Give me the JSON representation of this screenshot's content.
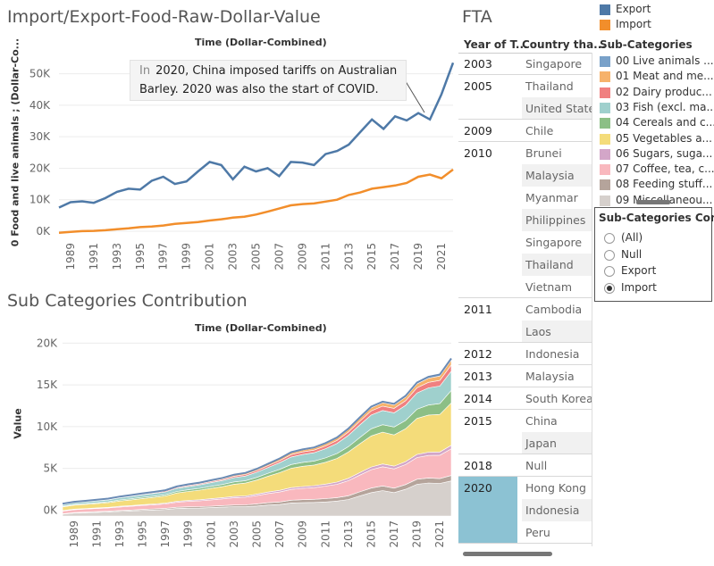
{
  "top": {
    "title": "Import/Export-Food-Raw-Dollar-Value",
    "subtitle": "Time (Dollar-Combined)",
    "y_axis_label": "0 Food and live animals ; (Dollar-Co...",
    "annotation_prefix": "In",
    "annotation_line1": "2020, China imposed tariffs on Australian",
    "annotation_line2": "Barley. 2020 was also the start of COVID."
  },
  "bottom": {
    "title": "Sub Categories Contribution",
    "subtitle": "Time (Dollar-Combined)",
    "y_axis_label": "Value"
  },
  "fta": {
    "title": "FTA",
    "col_year": "Year of T...",
    "col_country": "Country tha...",
    "rows": [
      {
        "year": "2003",
        "country": "Singapore"
      },
      {
        "year": "2005",
        "country": "Thailand"
      },
      {
        "year": "",
        "country": "United States"
      },
      {
        "year": "2009",
        "country": "Chile"
      },
      {
        "year": "2010",
        "country": "Brunei"
      },
      {
        "year": "",
        "country": "Malaysia"
      },
      {
        "year": "",
        "country": "Myanmar"
      },
      {
        "year": "",
        "country": "Philippines"
      },
      {
        "year": "",
        "country": "Singapore"
      },
      {
        "year": "",
        "country": "Thailand"
      },
      {
        "year": "",
        "country": "Vietnam"
      },
      {
        "year": "2011",
        "country": "Cambodia"
      },
      {
        "year": "",
        "country": "Laos"
      },
      {
        "year": "2012",
        "country": "Indonesia"
      },
      {
        "year": "2013",
        "country": "Malaysia"
      },
      {
        "year": "2014",
        "country": "South Korea"
      },
      {
        "year": "2015",
        "country": "China"
      },
      {
        "year": "",
        "country": "Japan"
      },
      {
        "year": "2018",
        "country": "Null"
      },
      {
        "year": "2020",
        "country": "Hong Kong"
      },
      {
        "year": "",
        "country": "Indonesia"
      },
      {
        "year": "",
        "country": "Peru"
      }
    ],
    "highlight_color": "#8cc2d3"
  },
  "legend_type": {
    "items": [
      {
        "label": "Export",
        "color": "#4e79a7"
      },
      {
        "label": "Import",
        "color": "#f28e2b"
      }
    ]
  },
  "legend_sub": {
    "title": "Sub-Categories",
    "items": [
      {
        "label": "00 Live animals ...",
        "color": "#79a1c9"
      },
      {
        "label": "01 Meat and me...",
        "color": "#f6b26b"
      },
      {
        "label": "02 Dairy produc...",
        "color": "#f08080"
      },
      {
        "label": "03 Fish (excl. ma...",
        "color": "#9fd0cd"
      },
      {
        "label": "04 Cereals and c...",
        "color": "#8cbf86"
      },
      {
        "label": "05 Vegetables a...",
        "color": "#f4dc7a"
      },
      {
        "label": "06 Sugars, suga...",
        "color": "#d3a6c8"
      },
      {
        "label": "07 Coffee, tea, c...",
        "color": "#f9b8be"
      },
      {
        "label": "08 Feeding stuff...",
        "color": "#b5a49b"
      },
      {
        "label": "09 Miscellaneou...",
        "color": "#d6d0cc"
      }
    ]
  },
  "filter": {
    "title": "Sub-Categories Con...",
    "options": [
      "(All)",
      "Null",
      "Export",
      "Import"
    ],
    "selected": "Import"
  },
  "chart_data": [
    {
      "type": "line",
      "title": "Import/Export-Food-Raw-Dollar-Value",
      "ylabel": "0 Food and live animals ; (Dollar-Co...",
      "x_ticks": [
        "1989",
        "1991",
        "1993",
        "1995",
        "1997",
        "1999",
        "2001",
        "2003",
        "2005",
        "2007",
        "2009",
        "2011",
        "2013",
        "2015",
        "2017",
        "2019",
        "2021"
      ],
      "y_ticks": [
        "0K",
        "10K",
        "20K",
        "30K",
        "40K",
        "50K"
      ],
      "ylim": [
        -2000,
        57000
      ],
      "x": [
        1988,
        1989,
        1990,
        1991,
        1992,
        1993,
        1994,
        1995,
        1996,
        1997,
        1998,
        1999,
        2000,
        2001,
        2002,
        2003,
        2004,
        2005,
        2006,
        2007,
        2008,
        2009,
        2010,
        2011,
        2012,
        2013,
        2014,
        2015,
        2016,
        2017,
        2018,
        2019,
        2020,
        2021,
        2022
      ],
      "series": [
        {
          "name": "Export",
          "values": [
            7500,
            9200,
            9500,
            9000,
            10500,
            12500,
            13500,
            13200,
            16000,
            17300,
            15000,
            15800,
            19000,
            22000,
            21000,
            16500,
            20500,
            19000,
            20000,
            17500,
            22000,
            21800,
            21000,
            24500,
            25500,
            27500,
            31500,
            35500,
            32500,
            36500,
            35200,
            37500,
            35500,
            43500,
            53500
          ]
        },
        {
          "name": "Import",
          "values": [
            -500,
            -200,
            0,
            100,
            300,
            600,
            900,
            1300,
            1500,
            1800,
            2300,
            2600,
            2900,
            3400,
            3800,
            4300,
            4600,
            5300,
            6200,
            7200,
            8200,
            8600,
            8800,
            9400,
            10000,
            11500,
            12300,
            13500,
            14000,
            14500,
            15300,
            17300,
            18000,
            16800,
            19600
          ]
        }
      ]
    },
    {
      "type": "area",
      "title": "Sub Categories Contribution",
      "ylabel": "Value",
      "x_ticks": [
        "1989",
        "1991",
        "1993",
        "1995",
        "1997",
        "1999",
        "2001",
        "2003",
        "2005",
        "2007",
        "2009",
        "2011",
        "2013",
        "2015",
        "2017",
        "2019",
        "2021"
      ],
      "y_ticks": [
        "0K",
        "5K",
        "10K",
        "15K",
        "20K"
      ],
      "ylim": [
        -700,
        21000
      ],
      "x": [
        1988,
        1989,
        1990,
        1991,
        1992,
        1993,
        1994,
        1995,
        1996,
        1997,
        1998,
        1999,
        2000,
        2001,
        2002,
        2003,
        2004,
        2005,
        2006,
        2007,
        2008,
        2009,
        2010,
        2011,
        2012,
        2013,
        2014,
        2015,
        2016,
        2017,
        2018,
        2019,
        2020,
        2021,
        2022
      ],
      "stack_order": "bottom-to-top: 09, 08, 07, 06, 05, 04, 03, 02, 01, 00",
      "series": [
        {
          "name": "09 Miscellaneou...",
          "values": [
            -480,
            -350,
            -300,
            -260,
            -210,
            -140,
            -90,
            -30,
            20,
            80,
            200,
            240,
            250,
            300,
            360,
            420,
            420,
            500,
            620,
            680,
            860,
            900,
            920,
            980,
            1080,
            1280,
            1700,
            2100,
            2350,
            2100,
            2500,
            3100,
            3250,
            3200,
            3500
          ]
        },
        {
          "name": "08 Feeding stuff...",
          "values": [
            50,
            60,
            70,
            80,
            90,
            100,
            110,
            120,
            130,
            140,
            150,
            160,
            170,
            180,
            190,
            200,
            220,
            250,
            270,
            300,
            330,
            360,
            380,
            400,
            420,
            450,
            500,
            550,
            550,
            540,
            560,
            600,
            600,
            580,
            650
          ]
        },
        {
          "name": "07 Coffee, tea, c...",
          "values": [
            320,
            350,
            360,
            380,
            390,
            420,
            450,
            480,
            500,
            520,
            600,
            650,
            700,
            750,
            800,
            860,
            900,
            1000,
            1100,
            1200,
            1300,
            1350,
            1400,
            1500,
            1600,
            1800,
            2000,
            2200,
            2300,
            2300,
            2400,
            2600,
            2700,
            2800,
            3200
          ]
        },
        {
          "name": "06 Sugars, suga...",
          "values": [
            60,
            60,
            60,
            70,
            70,
            80,
            80,
            90,
            90,
            100,
            110,
            120,
            130,
            140,
            150,
            160,
            170,
            180,
            190,
            200,
            210,
            220,
            230,
            240,
            260,
            280,
            300,
            320,
            330,
            340,
            350,
            380,
            390,
            380,
            420
          ]
        },
        {
          "name": "05 Vegetables a...",
          "values": [
            440,
            480,
            500,
            520,
            560,
            640,
            680,
            740,
            790,
            850,
            1000,
            1070,
            1150,
            1250,
            1320,
            1470,
            1530,
            1680,
            1900,
            2110,
            2320,
            2420,
            2470,
            2620,
            2840,
            3150,
            3450,
            3720,
            3810,
            3730,
            3930,
            4300,
            4450,
            4500,
            5070
          ]
        },
        {
          "name": "04 Cereals and c...",
          "values": [
            60,
            70,
            80,
            90,
            100,
            120,
            130,
            140,
            150,
            160,
            180,
            200,
            210,
            230,
            250,
            270,
            290,
            320,
            350,
            400,
            450,
            470,
            480,
            520,
            580,
            650,
            750,
            850,
            900,
            950,
            1000,
            1100,
            1200,
            1300,
            1500
          ]
        },
        {
          "name": "03 Fish (excl. ma...",
          "values": [
            200,
            210,
            220,
            230,
            240,
            260,
            280,
            300,
            320,
            340,
            380,
            400,
            420,
            450,
            480,
            520,
            560,
            620,
            700,
            800,
            900,
            950,
            1000,
            1100,
            1200,
            1350,
            1500,
            1650,
            1700,
            1700,
            1800,
            1950,
            2050,
            2100,
            2300
          ]
        },
        {
          "name": "02 Dairy produc...",
          "values": [
            50,
            50,
            60,
            60,
            60,
            70,
            80,
            80,
            90,
            100,
            110,
            120,
            130,
            140,
            150,
            170,
            180,
            200,
            220,
            250,
            280,
            300,
            310,
            330,
            360,
            400,
            450,
            500,
            520,
            530,
            560,
            620,
            660,
            680,
            750
          ]
        },
        {
          "name": "01 Meat and me...",
          "values": [
            50,
            50,
            50,
            60,
            60,
            60,
            70,
            70,
            80,
            80,
            90,
            100,
            110,
            120,
            130,
            140,
            150,
            160,
            180,
            200,
            220,
            230,
            240,
            260,
            280,
            310,
            340,
            380,
            400,
            410,
            430,
            470,
            500,
            520,
            580
          ]
        },
        {
          "name": "00 Live animals ...",
          "values": [
            20,
            20,
            20,
            20,
            20,
            20,
            20,
            20,
            20,
            20,
            20,
            30,
            30,
            30,
            30,
            40,
            40,
            40,
            50,
            60,
            70,
            70,
            80,
            80,
            90,
            100,
            110,
            120,
            130,
            140,
            150,
            160,
            170,
            180,
            200
          ]
        }
      ]
    }
  ]
}
